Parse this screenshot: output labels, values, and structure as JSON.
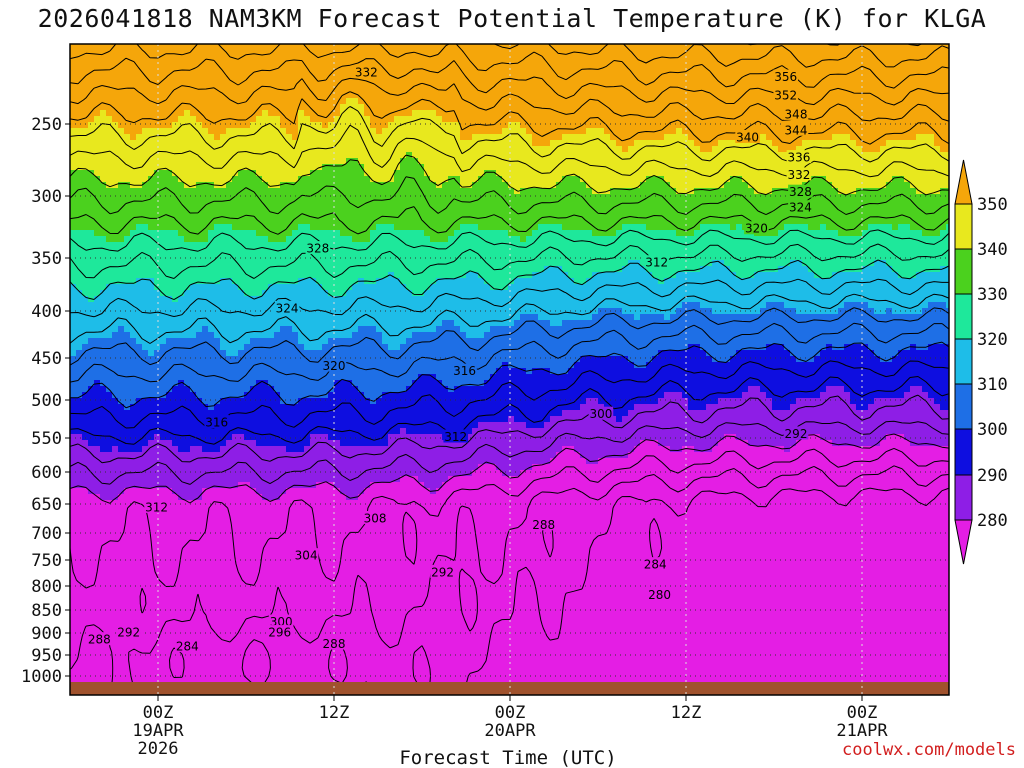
{
  "title": "2026041818 NAM3KM Forecast Potential Temperature (K) for KLGA",
  "credit": "coolwx.com/models",
  "chart_data": {
    "type": "contour",
    "title": "2026041818 NAM3KM Forecast Potential Temperature (K) for KLGA",
    "xlabel": "Forecast Time (UTC)",
    "ylabel": "",
    "y_ticks": [
      250,
      300,
      350,
      400,
      450,
      500,
      550,
      600,
      650,
      700,
      750,
      800,
      850,
      900,
      950,
      1000
    ],
    "y_range": [
      200,
      1000
    ],
    "x_ticks": [
      {
        "h": 6,
        "lines": [
          "00Z",
          "19APR",
          "2026"
        ]
      },
      {
        "h": 18,
        "lines": [
          "12Z"
        ]
      },
      {
        "h": 30,
        "lines": [
          "00Z",
          "20APR"
        ]
      },
      {
        "h": 42,
        "lines": [
          "12Z"
        ]
      },
      {
        "h": 54,
        "lines": [
          "00Z",
          "21APR"
        ]
      }
    ],
    "x_range": [
      0,
      60
    ],
    "colorbar": {
      "ticks": [
        280,
        290,
        300,
        310,
        320,
        330,
        340,
        350
      ],
      "colors": [
        "#e41ee4",
        "#8e1ee6",
        "#0e0ee0",
        "#1e6fe6",
        "#1ebde8",
        "#1ee89b",
        "#4bd11e",
        "#e8e81e",
        "#f5a60a"
      ]
    },
    "contour_interval": 4,
    "contour_labels": [
      {
        "v": "356",
        "h": 48.8,
        "p": 217
      },
      {
        "v": "352",
        "h": 48.8,
        "p": 230
      },
      {
        "v": "348",
        "h": 49.5,
        "p": 243
      },
      {
        "v": "344",
        "h": 49.5,
        "p": 254
      },
      {
        "v": "340",
        "h": 46.2,
        "p": 259
      },
      {
        "v": "336",
        "h": 49.7,
        "p": 273
      },
      {
        "v": "332",
        "h": 49.7,
        "p": 285
      },
      {
        "v": "328",
        "h": 49.8,
        "p": 297
      },
      {
        "v": "324",
        "h": 49.8,
        "p": 309
      },
      {
        "v": "320",
        "h": 46.8,
        "p": 326
      },
      {
        "v": "312",
        "h": 40.0,
        "p": 354
      },
      {
        "v": "332",
        "h": 20.2,
        "p": 214
      },
      {
        "v": "328",
        "h": 16.9,
        "p": 342
      },
      {
        "v": "324",
        "h": 14.8,
        "p": 397
      },
      {
        "v": "320",
        "h": 18.0,
        "p": 459
      },
      {
        "v": "316",
        "h": 26.9,
        "p": 465
      },
      {
        "v": "316",
        "h": 10.0,
        "p": 529
      },
      {
        "v": "312",
        "h": 26.3,
        "p": 548
      },
      {
        "v": "312",
        "h": 5.9,
        "p": 655
      },
      {
        "v": "300",
        "h": 36.2,
        "p": 518
      },
      {
        "v": "292",
        "h": 49.5,
        "p": 544
      },
      {
        "v": "308",
        "h": 20.8,
        "p": 674
      },
      {
        "v": "304",
        "h": 16.1,
        "p": 741
      },
      {
        "v": "292",
        "h": 25.4,
        "p": 773
      },
      {
        "v": "288",
        "h": 32.3,
        "p": 685
      },
      {
        "v": "284",
        "h": 39.9,
        "p": 758
      },
      {
        "v": "280",
        "h": 40.2,
        "p": 818
      },
      {
        "v": "300",
        "h": 14.4,
        "p": 875
      },
      {
        "v": "296",
        "h": 14.3,
        "p": 898
      },
      {
        "v": "292",
        "h": 4.0,
        "p": 898
      },
      {
        "v": "288",
        "h": 2.0,
        "p": 914
      },
      {
        "v": "288",
        "h": 18.0,
        "p": 924
      },
      {
        "v": "284",
        "h": 8.0,
        "p": 930
      }
    ]
  }
}
